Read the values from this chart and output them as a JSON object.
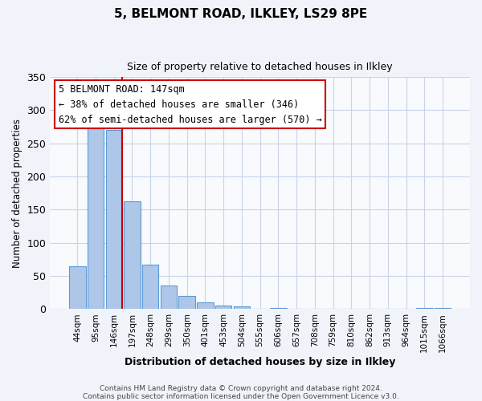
{
  "title": "5, BELMONT ROAD, ILKLEY, LS29 8PE",
  "subtitle": "Size of property relative to detached houses in Ilkley",
  "xlabel": "Distribution of detached houses by size in Ilkley",
  "ylabel": "Number of detached properties",
  "bar_labels": [
    "44sqm",
    "95sqm",
    "146sqm",
    "197sqm",
    "248sqm",
    "299sqm",
    "350sqm",
    "401sqm",
    "453sqm",
    "504sqm",
    "555sqm",
    "606sqm",
    "657sqm",
    "708sqm",
    "759sqm",
    "810sqm",
    "862sqm",
    "913sqm",
    "964sqm",
    "1015sqm",
    "1066sqm"
  ],
  "bar_values": [
    65,
    280,
    270,
    163,
    67,
    35,
    20,
    10,
    5,
    4,
    0,
    2,
    0,
    0,
    0,
    0,
    0,
    0,
    0,
    2,
    2
  ],
  "bar_color": "#aec6e8",
  "bar_edge_color": "#5b9bd5",
  "vline_color": "#cc0000",
  "annotation_title": "5 BELMONT ROAD: 147sqm",
  "annotation_line1": "← 38% of detached houses are smaller (346)",
  "annotation_line2": "62% of semi-detached houses are larger (570) →",
  "annotation_border_color": "#cc0000",
  "ylim": [
    0,
    350
  ],
  "yticks": [
    0,
    50,
    100,
    150,
    200,
    250,
    300,
    350
  ],
  "footer1": "Contains HM Land Registry data © Crown copyright and database right 2024.",
  "footer2": "Contains public sector information licensed under the Open Government Licence v3.0.",
  "bg_color": "#f0f4fa",
  "plot_bg_color": "#f8fafd",
  "grid_color": "#c8d4e8"
}
